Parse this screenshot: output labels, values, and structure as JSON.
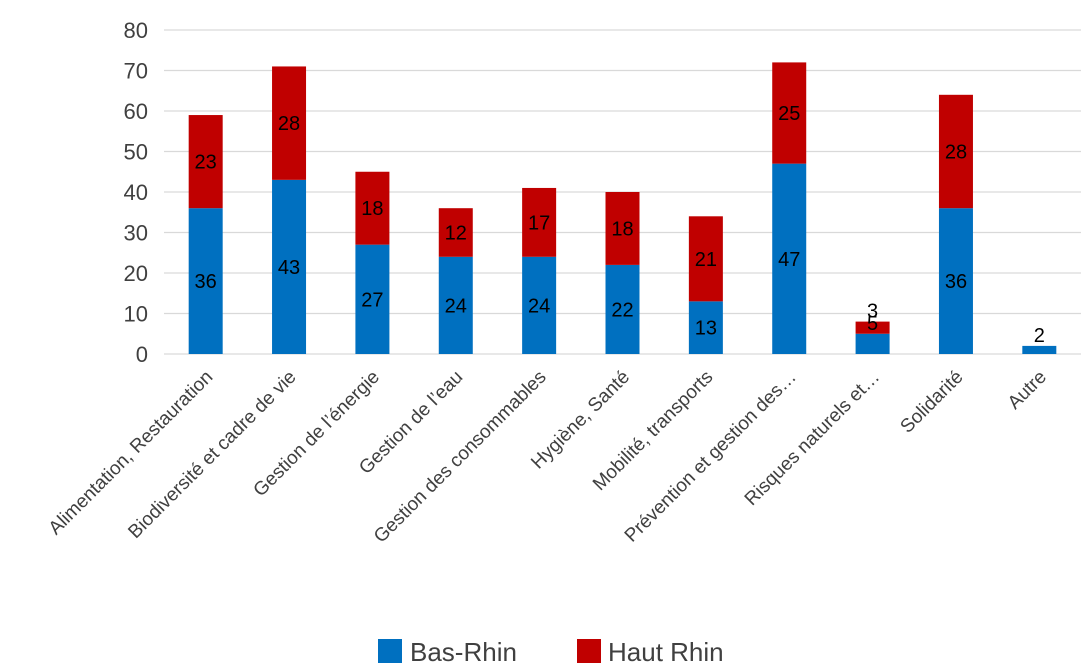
{
  "chart_data": {
    "type": "bar",
    "stacked": true,
    "categories": [
      "Alimentation, Restauration",
      "Biodiversité et cadre de vie",
      "Gestion de l’énergie",
      "Gestion de l’eau",
      "Gestion des consommables",
      "Hygiène, Santé",
      "Mobilité, transports",
      "Prévention et gestion des…",
      "Risques naturels et…",
      "Solidarité",
      "Autre"
    ],
    "series": [
      {
        "name": "Bas-Rhin",
        "color": "#0070C0",
        "values": [
          36,
          43,
          27,
          24,
          24,
          22,
          13,
          47,
          5,
          36,
          2
        ]
      },
      {
        "name": "Haut Rhin",
        "color": "#C00000",
        "values": [
          23,
          28,
          18,
          12,
          17,
          18,
          21,
          25,
          3,
          28,
          0
        ]
      }
    ],
    "ylim": [
      0,
      80
    ],
    "yticks": [
      0,
      10,
      20,
      30,
      40,
      50,
      60,
      70,
      80
    ],
    "grid": true,
    "legend_position": "bottom",
    "gridline_color": "#D9D9D9"
  }
}
